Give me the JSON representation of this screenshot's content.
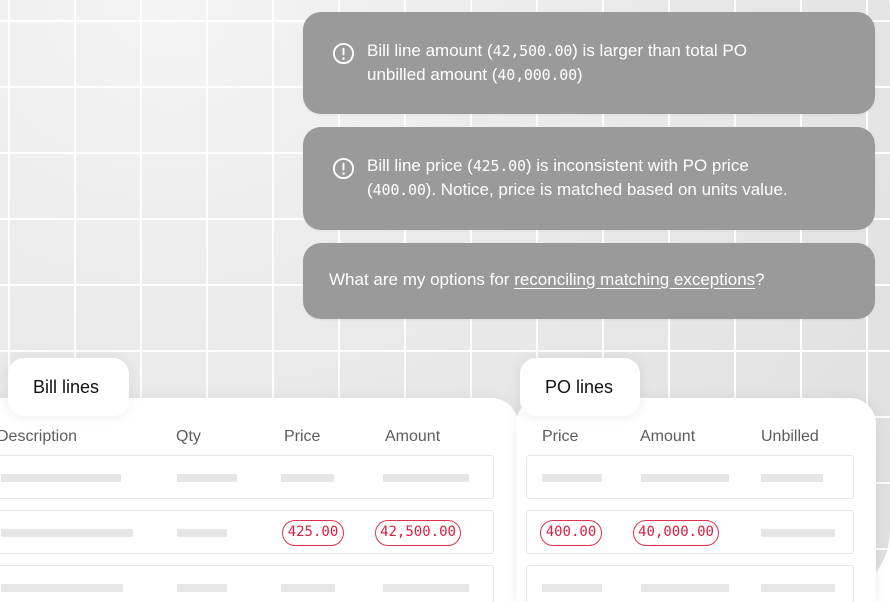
{
  "alerts": [
    {
      "icon": "exclamation-circle-icon",
      "line1_pre": "Bill line amount (",
      "line1_num": "42,500.00",
      "line1_post": ") is larger than total PO",
      "line2_pre": "unbilled amount (",
      "line2_num": "40,000.00",
      "line2_post": ")"
    },
    {
      "icon": "exclamation-circle-icon",
      "line1_pre": "Bill line price (",
      "line1_num": "425.00",
      "line1_post": ") is inconsistent with PO price",
      "line2_pre": "(",
      "line2_num": "400.00",
      "line2_post": "). Notice, price is matched based on units value."
    }
  ],
  "question": {
    "pre": "What are my options for ",
    "link": "reconciling matching exceptions",
    "post": "?"
  },
  "bill_lines": {
    "title": "Bill lines",
    "columns": [
      "Description",
      "Qty",
      "Price",
      "Amount"
    ],
    "flagged_row": {
      "price": "425.00",
      "amount": "42,500.00"
    }
  },
  "po_lines": {
    "title": "PO lines",
    "columns": [
      "Price",
      "Amount",
      "Unbilled"
    ],
    "flagged_row": {
      "price": "400.00",
      "amount": "40,000.00"
    }
  },
  "colors": {
    "bubble": "#9a9a9a",
    "error": "#e0334f",
    "placeholder_bar": "#e6e6e6"
  }
}
